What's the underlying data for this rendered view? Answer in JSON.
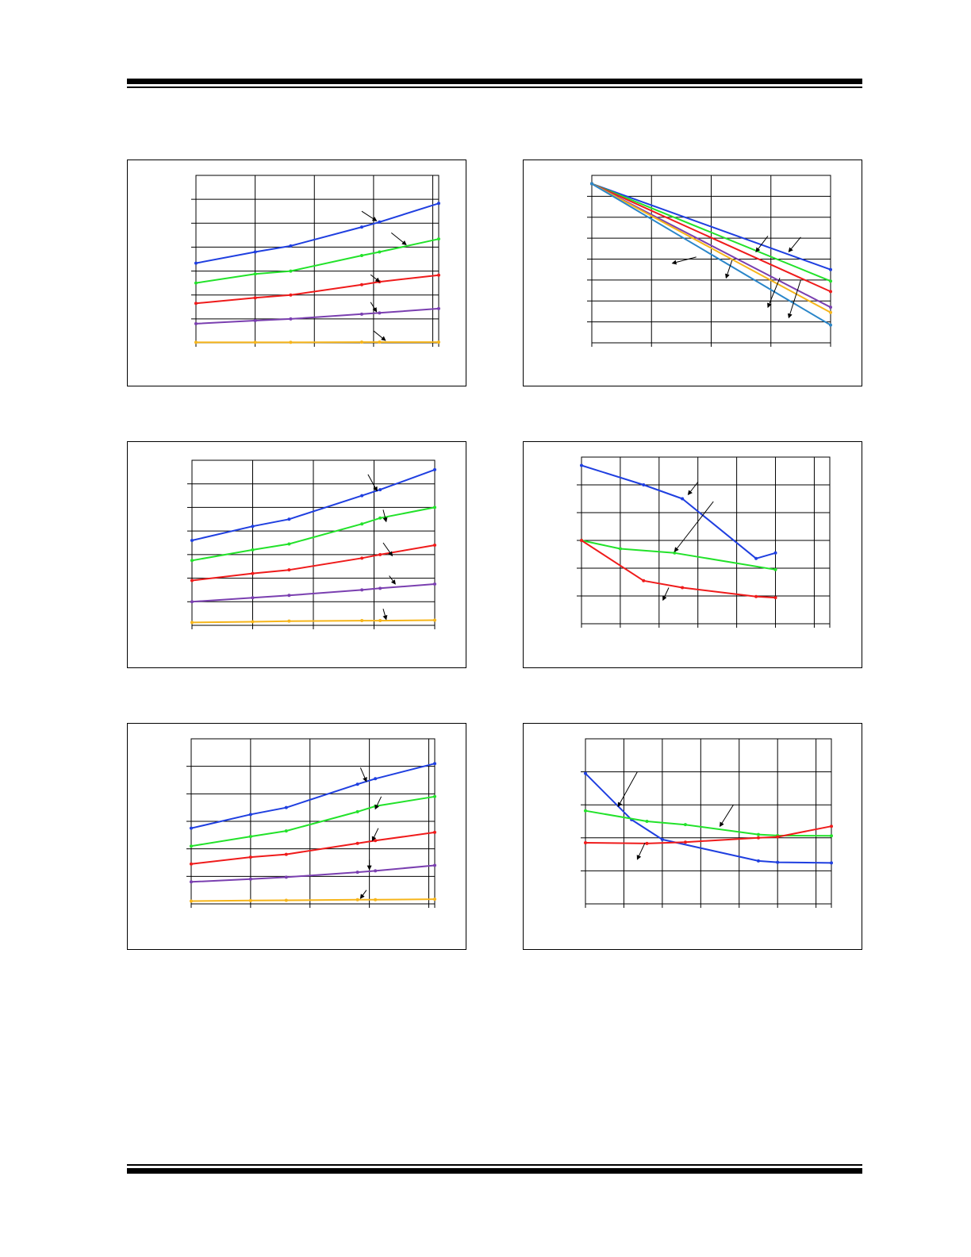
{
  "page": {
    "title": "",
    "footer": ""
  },
  "colors": {
    "blue": "#1f3fe0",
    "green": "#22e22a",
    "red": "#ef1b1b",
    "purple": "#7a3fb0",
    "orange": "#f6b51a",
    "teal": "#2a86c9",
    "grid": "#000000"
  },
  "chart_data": [
    {
      "id": "chart-1",
      "type": "line",
      "title": "",
      "xlabel": "",
      "ylabel": "",
      "xlim": [
        0,
        4.1
      ],
      "ylim": [
        0,
        7
      ],
      "grid": true,
      "x": [
        0,
        1,
        1.6,
        2.8,
        3.1,
        4.1
      ],
      "series": [
        {
          "color": "blue",
          "values": [
            3.33,
            3.8,
            4.05,
            4.84,
            5.05,
            5.83
          ]
        },
        {
          "color": "green",
          "values": [
            2.5,
            2.88,
            3.0,
            3.65,
            3.8,
            4.34
          ]
        },
        {
          "color": "red",
          "values": [
            1.65,
            1.88,
            2.0,
            2.43,
            2.55,
            2.83
          ]
        },
        {
          "color": "purple",
          "values": [
            0.8,
            0.93,
            1.0,
            1.2,
            1.25,
            1.43
          ]
        },
        {
          "color": "orange",
          "values": [
            0.02,
            0.02,
            0.02,
            0.03,
            0.03,
            0.03
          ]
        }
      ],
      "annotations": [
        {
          "x1": 2.8,
          "y1": 5.5,
          "x2": 3.05,
          "y2": 5.1
        },
        {
          "x1": 3.3,
          "y1": 4.6,
          "x2": 3.55,
          "y2": 4.1
        },
        {
          "x1": 2.95,
          "y1": 2.85,
          "x2": 3.1,
          "y2": 2.55
        },
        {
          "x1": 2.95,
          "y1": 1.7,
          "x2": 3.05,
          "y2": 1.3
        },
        {
          "x1": 3.0,
          "y1": 0.5,
          "x2": 3.2,
          "y2": 0.1
        }
      ]
    },
    {
      "id": "chart-2",
      "type": "line",
      "title": "",
      "xlabel": "",
      "ylabel": "",
      "xlim": [
        0,
        4
      ],
      "ylim": [
        0,
        8
      ],
      "grid": true,
      "x": [
        0,
        4
      ],
      "series": [
        {
          "color": "blue",
          "values": [
            7.6,
            3.5
          ]
        },
        {
          "color": "green",
          "values": [
            7.6,
            2.95
          ]
        },
        {
          "color": "red",
          "values": [
            7.6,
            2.45
          ]
        },
        {
          "color": "purple",
          "values": [
            7.6,
            1.7
          ]
        },
        {
          "color": "orange",
          "values": [
            7.6,
            1.45
          ]
        },
        {
          "color": "teal",
          "values": [
            7.6,
            0.85
          ]
        }
      ],
      "annotations": [
        {
          "x1": 2.95,
          "y1": 5.1,
          "x2": 2.75,
          "y2": 4.35
        },
        {
          "x1": 3.5,
          "y1": 5.05,
          "x2": 3.3,
          "y2": 4.35
        },
        {
          "x1": 1.75,
          "y1": 4.1,
          "x2": 1.35,
          "y2": 3.8
        },
        {
          "x1": 2.35,
          "y1": 3.95,
          "x2": 2.25,
          "y2": 3.1
        },
        {
          "x1": 3.15,
          "y1": 3.1,
          "x2": 2.95,
          "y2": 1.7
        },
        {
          "x1": 3.5,
          "y1": 3.0,
          "x2": 3.3,
          "y2": 1.2
        }
      ]
    },
    {
      "id": "chart-3",
      "type": "line",
      "title": "",
      "xlabel": "",
      "ylabel": "",
      "xlim": [
        0,
        4
      ],
      "ylim": [
        0,
        7
      ],
      "grid": true,
      "x": [
        0,
        1,
        1.6,
        2.8,
        3.1,
        4
      ],
      "series": [
        {
          "color": "blue",
          "values": [
            3.6,
            4.2,
            4.5,
            5.5,
            5.75,
            6.6
          ]
        },
        {
          "color": "green",
          "values": [
            2.75,
            3.2,
            3.45,
            4.3,
            4.55,
            5.0
          ]
        },
        {
          "color": "red",
          "values": [
            1.9,
            2.2,
            2.35,
            2.85,
            3.0,
            3.4
          ]
        },
        {
          "color": "purple",
          "values": [
            1.0,
            1.17,
            1.27,
            1.5,
            1.57,
            1.75
          ]
        },
        {
          "color": "orange",
          "values": [
            0.12,
            0.15,
            0.18,
            0.2,
            0.2,
            0.22
          ]
        }
      ],
      "annotations": [
        {
          "x1": 2.9,
          "y1": 6.4,
          "x2": 3.05,
          "y2": 5.7
        },
        {
          "x1": 3.15,
          "y1": 4.9,
          "x2": 3.2,
          "y2": 4.4
        },
        {
          "x1": 3.15,
          "y1": 3.5,
          "x2": 3.3,
          "y2": 2.95
        },
        {
          "x1": 3.25,
          "y1": 2.1,
          "x2": 3.35,
          "y2": 1.75
        },
        {
          "x1": 3.15,
          "y1": 0.7,
          "x2": 3.2,
          "y2": 0.25
        }
      ]
    },
    {
      "id": "chart-4",
      "type": "line",
      "title": "",
      "xlabel": "",
      "ylabel": "",
      "xlim": [
        0,
        6.4
      ],
      "ylim": [
        0,
        6
      ],
      "grid": true,
      "series": [
        {
          "color": "blue",
          "x": [
            0,
            1.6,
            2.6,
            4.5,
            5.0
          ],
          "values": [
            5.7,
            5.0,
            4.5,
            2.35,
            2.55
          ]
        },
        {
          "color": "green",
          "x": [
            0,
            1.0,
            2.4,
            5.0
          ],
          "values": [
            3.0,
            2.7,
            2.55,
            1.95
          ]
        },
        {
          "color": "red",
          "x": [
            0,
            1.6,
            2.6,
            4.5,
            5.0
          ],
          "values": [
            3.0,
            1.55,
            1.3,
            0.98,
            0.94
          ]
        }
      ],
      "annotations": [
        {
          "x1": 3.0,
          "y1": 5.1,
          "x2": 2.75,
          "y2": 4.65
        },
        {
          "x1": 3.4,
          "y1": 4.4,
          "x2": 2.4,
          "y2": 2.6
        },
        {
          "x1": 2.25,
          "y1": 1.3,
          "x2": 2.1,
          "y2": 0.85
        }
      ]
    },
    {
      "id": "chart-5",
      "type": "line",
      "title": "",
      "xlabel": "",
      "ylabel": "",
      "xlim": [
        0,
        6.4
      ],
      "ylim": [
        0,
        5
      ],
      "grid": true,
      "series": [
        {
          "color": "blue",
          "x": [
            0,
            1.2,
            2.0,
            4.5,
            5.0,
            6.4
          ],
          "values": [
            3.95,
            2.55,
            1.95,
            1.3,
            1.26,
            1.24
          ]
        },
        {
          "color": "green",
          "x": [
            0,
            1.6,
            2.6,
            4.5,
            5.0,
            6.4
          ],
          "values": [
            2.82,
            2.5,
            2.4,
            2.1,
            2.07,
            2.06
          ]
        },
        {
          "color": "red",
          "x": [
            0,
            1.6,
            2.6,
            4.5,
            5.0,
            6.4
          ],
          "values": [
            1.85,
            1.83,
            1.87,
            2.0,
            2.03,
            2.35
          ]
        }
      ],
      "annotations": [
        {
          "x1": 1.35,
          "y1": 4.0,
          "x2": 0.85,
          "y2": 2.95
        },
        {
          "x1": 3.85,
          "y1": 3.0,
          "x2": 3.5,
          "y2": 2.35
        },
        {
          "x1": 1.55,
          "y1": 1.85,
          "x2": 1.35,
          "y2": 1.35
        }
      ]
    }
  ]
}
